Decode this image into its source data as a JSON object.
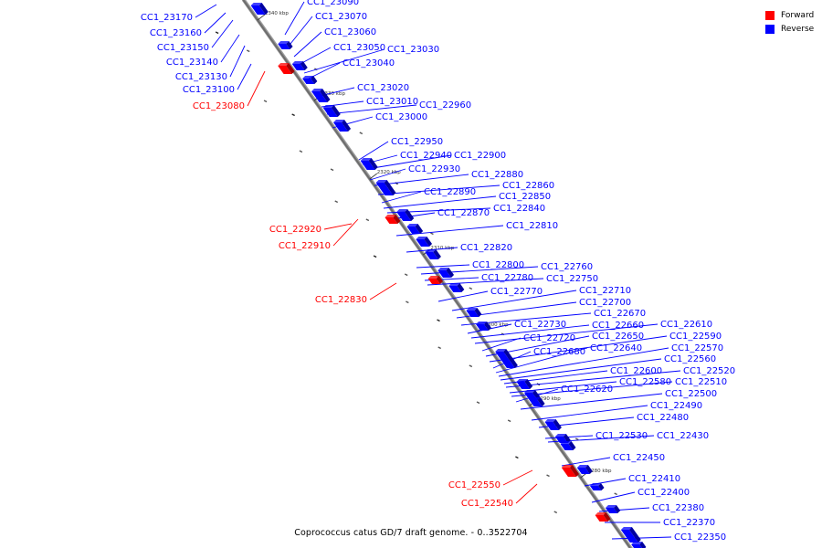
{
  "legend": {
    "forward_label": "Forward",
    "reverse_label": "Reverse",
    "forward_color": "#ff0000",
    "reverse_color": "#0000ff"
  },
  "caption": "Coprococcus catus GD/7 draft genome. - 0..3522704",
  "scale": {
    "unit": "kbp",
    "ticks": [
      "2340 kbp",
      "2330 kbp",
      "2320 kbp",
      "2310 kbp",
      "2300 kbp",
      "2290 kbp",
      "2280 kbp"
    ]
  },
  "genes": [
    {
      "id": "CC1_23170",
      "strand": "reverse"
    },
    {
      "id": "CC1_23160",
      "strand": "reverse"
    },
    {
      "id": "CC1_23150",
      "strand": "reverse"
    },
    {
      "id": "CC1_23140",
      "strand": "reverse"
    },
    {
      "id": "CC1_23130",
      "strand": "reverse"
    },
    {
      "id": "CC1_23100",
      "strand": "reverse"
    },
    {
      "id": "CC1_23080",
      "strand": "forward"
    },
    {
      "id": "CC1_23090",
      "strand": "reverse"
    },
    {
      "id": "CC1_23070",
      "strand": "reverse"
    },
    {
      "id": "CC1_23060",
      "strand": "reverse"
    },
    {
      "id": "CC1_23050",
      "strand": "reverse"
    },
    {
      "id": "CC1_23030",
      "strand": "reverse"
    },
    {
      "id": "CC1_23040",
      "strand": "reverse"
    },
    {
      "id": "CC1_23020",
      "strand": "reverse"
    },
    {
      "id": "CC1_23010",
      "strand": "reverse"
    },
    {
      "id": "CC1_22960",
      "strand": "reverse"
    },
    {
      "id": "CC1_23000",
      "strand": "reverse"
    },
    {
      "id": "CC1_22950",
      "strand": "reverse"
    },
    {
      "id": "CC1_22940",
      "strand": "reverse"
    },
    {
      "id": "CC1_22900",
      "strand": "reverse"
    },
    {
      "id": "CC1_22930",
      "strand": "reverse"
    },
    {
      "id": "CC1_22880",
      "strand": "reverse"
    },
    {
      "id": "CC1_22860",
      "strand": "reverse"
    },
    {
      "id": "CC1_22890",
      "strand": "reverse"
    },
    {
      "id": "CC1_22850",
      "strand": "reverse"
    },
    {
      "id": "CC1_22840",
      "strand": "reverse"
    },
    {
      "id": "CC1_22870",
      "strand": "reverse"
    },
    {
      "id": "CC1_22920",
      "strand": "forward"
    },
    {
      "id": "CC1_22910",
      "strand": "forward"
    },
    {
      "id": "CC1_22810",
      "strand": "reverse"
    },
    {
      "id": "CC1_22820",
      "strand": "reverse"
    },
    {
      "id": "CC1_22800",
      "strand": "reverse"
    },
    {
      "id": "CC1_22760",
      "strand": "reverse"
    },
    {
      "id": "CC1_22780",
      "strand": "reverse"
    },
    {
      "id": "CC1_22750",
      "strand": "reverse"
    },
    {
      "id": "CC1_22830",
      "strand": "forward"
    },
    {
      "id": "CC1_22770",
      "strand": "reverse"
    },
    {
      "id": "CC1_22710",
      "strand": "reverse"
    },
    {
      "id": "CC1_22700",
      "strand": "reverse"
    },
    {
      "id": "CC1_22670",
      "strand": "reverse"
    },
    {
      "id": "CC1_22730",
      "strand": "reverse"
    },
    {
      "id": "CC1_22660",
      "strand": "reverse"
    },
    {
      "id": "CC1_22610",
      "strand": "reverse"
    },
    {
      "id": "CC1_22720",
      "strand": "reverse"
    },
    {
      "id": "CC1_22650",
      "strand": "reverse"
    },
    {
      "id": "CC1_22590",
      "strand": "reverse"
    },
    {
      "id": "CC1_22680",
      "strand": "reverse"
    },
    {
      "id": "CC1_22640",
      "strand": "reverse"
    },
    {
      "id": "CC1_22570",
      "strand": "reverse"
    },
    {
      "id": "CC1_22560",
      "strand": "reverse"
    },
    {
      "id": "CC1_22600",
      "strand": "reverse"
    },
    {
      "id": "CC1_22520",
      "strand": "reverse"
    },
    {
      "id": "CC1_22580",
      "strand": "reverse"
    },
    {
      "id": "CC1_22510",
      "strand": "reverse"
    },
    {
      "id": "CC1_22620",
      "strand": "reverse"
    },
    {
      "id": "CC1_22500",
      "strand": "reverse"
    },
    {
      "id": "CC1_22490",
      "strand": "reverse"
    },
    {
      "id": "CC1_22480",
      "strand": "reverse"
    },
    {
      "id": "CC1_22530",
      "strand": "reverse"
    },
    {
      "id": "CC1_22430",
      "strand": "reverse"
    },
    {
      "id": "CC1_22450",
      "strand": "reverse"
    },
    {
      "id": "CC1_22410",
      "strand": "reverse"
    },
    {
      "id": "CC1_22550",
      "strand": "forward"
    },
    {
      "id": "CC1_22400",
      "strand": "reverse"
    },
    {
      "id": "CC1_22540",
      "strand": "forward"
    },
    {
      "id": "CC1_22380",
      "strand": "reverse"
    },
    {
      "id": "CC1_22370",
      "strand": "reverse"
    },
    {
      "id": "CC1_22350",
      "strand": "reverse"
    }
  ]
}
